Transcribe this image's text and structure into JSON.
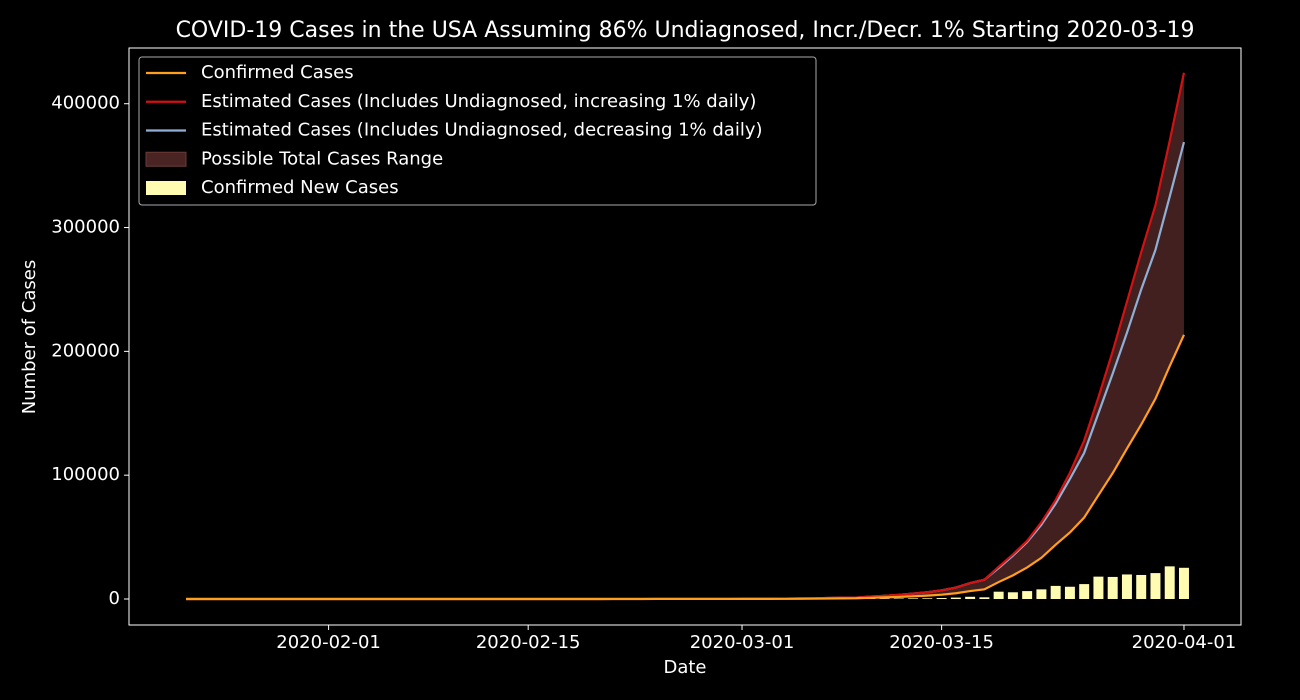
{
  "chart_data": {
    "type": "line",
    "title": "COVID-19 Cases in the USA Assuming 86% Undiagnosed, Incr./Decr. 1% Starting 2020-03-19",
    "x_label": "Date",
    "y_label": "Number of Cases",
    "x": [
      "2020-01-22",
      "2020-01-23",
      "2020-01-24",
      "2020-01-25",
      "2020-01-26",
      "2020-01-27",
      "2020-01-28",
      "2020-01-29",
      "2020-01-30",
      "2020-01-31",
      "2020-02-01",
      "2020-02-02",
      "2020-02-03",
      "2020-02-04",
      "2020-02-05",
      "2020-02-06",
      "2020-02-07",
      "2020-02-08",
      "2020-02-09",
      "2020-02-10",
      "2020-02-11",
      "2020-02-12",
      "2020-02-13",
      "2020-02-14",
      "2020-02-15",
      "2020-02-16",
      "2020-02-17",
      "2020-02-18",
      "2020-02-19",
      "2020-02-20",
      "2020-02-21",
      "2020-02-22",
      "2020-02-23",
      "2020-02-24",
      "2020-02-25",
      "2020-02-26",
      "2020-02-27",
      "2020-02-28",
      "2020-02-29",
      "2020-03-01",
      "2020-03-02",
      "2020-03-03",
      "2020-03-04",
      "2020-03-05",
      "2020-03-06",
      "2020-03-07",
      "2020-03-08",
      "2020-03-09",
      "2020-03-10",
      "2020-03-11",
      "2020-03-12",
      "2020-03-13",
      "2020-03-14",
      "2020-03-15",
      "2020-03-16",
      "2020-03-17",
      "2020-03-18",
      "2020-03-19",
      "2020-03-20",
      "2020-03-21",
      "2020-03-22",
      "2020-03-23",
      "2020-03-24",
      "2020-03-25",
      "2020-03-26",
      "2020-03-27",
      "2020-03-28",
      "2020-03-29",
      "2020-03-30",
      "2020-03-31",
      "2020-04-01"
    ],
    "series": [
      {
        "name": "Confirmed Cases",
        "kind": "line",
        "color": "#ff9f1c",
        "values": [
          1,
          1,
          2,
          2,
          5,
          5,
          5,
          5,
          5,
          7,
          8,
          8,
          11,
          11,
          12,
          12,
          12,
          12,
          12,
          12,
          13,
          13,
          14,
          14,
          14,
          14,
          14,
          14,
          14,
          14,
          16,
          16,
          16,
          51,
          51,
          57,
          58,
          60,
          68,
          74,
          98,
          118,
          149,
          217,
          262,
          402,
          518,
          583,
          959,
          1281,
          1663,
          2179,
          2727,
          3499,
          4632,
          6421,
          7786,
          13680,
          19101,
          25493,
          33276,
          43847,
          53740,
          65778,
          83836,
          101657,
          121478,
          140886,
          161807,
          188172,
          213372
        ]
      },
      {
        "name": "Estimated Cases (Includes Undiagnosed, increasing 1% daily)",
        "kind": "line",
        "color": "#d41111",
        "values": [
          2,
          2,
          4,
          4,
          10,
          10,
          10,
          10,
          10,
          14,
          16,
          16,
          22,
          22,
          24,
          24,
          24,
          24,
          24,
          24,
          26,
          26,
          28,
          28,
          28,
          28,
          28,
          28,
          28,
          28,
          32,
          32,
          32,
          102,
          102,
          114,
          116,
          120,
          136,
          148,
          196,
          236,
          298,
          434,
          524,
          804,
          1036,
          1166,
          1918,
          2562,
          3326,
          4358,
          5454,
          6998,
          9264,
          12842,
          15572,
          26000,
          36000,
          47000,
          62000,
          80000,
          102000,
          128000,
          163000,
          200000,
          240000,
          280000,
          318000,
          370000,
          425000
        ]
      },
      {
        "name": "Estimated Cases (Includes Undiagnosed, decreasing 1% daily)",
        "kind": "line",
        "color": "#8fb0d6",
        "values": [
          2,
          2,
          4,
          4,
          10,
          10,
          10,
          10,
          10,
          14,
          16,
          16,
          22,
          22,
          24,
          24,
          24,
          24,
          24,
          24,
          26,
          26,
          28,
          28,
          28,
          28,
          28,
          28,
          28,
          28,
          32,
          32,
          32,
          102,
          102,
          114,
          116,
          120,
          136,
          148,
          196,
          236,
          298,
          434,
          524,
          804,
          1036,
          1166,
          1918,
          2562,
          3326,
          4358,
          5454,
          6998,
          9264,
          12842,
          15572,
          25000,
          35000,
          46000,
          60000,
          77000,
          97000,
          118000,
          150000,
          182000,
          215000,
          250000,
          282000,
          325000,
          369000
        ]
      },
      {
        "name": "Possible Total Cases Range",
        "kind": "area",
        "color": "#4a2423",
        "between": [
          0,
          1
        ]
      },
      {
        "name": "Confirmed New Cases",
        "kind": "bar",
        "color": "#fffbb0",
        "values": [
          0,
          0,
          1,
          0,
          3,
          0,
          0,
          0,
          0,
          2,
          1,
          0,
          3,
          0,
          1,
          0,
          0,
          0,
          0,
          0,
          1,
          0,
          1,
          0,
          0,
          0,
          0,
          0,
          0,
          0,
          2,
          0,
          0,
          35,
          0,
          6,
          1,
          2,
          8,
          6,
          24,
          20,
          31,
          68,
          45,
          140,
          116,
          65,
          376,
          322,
          382,
          516,
          548,
          772,
          1133,
          1789,
          1365,
          5894,
          5421,
          6392,
          7783,
          10571,
          9893,
          12038,
          18058,
          17821,
          19821,
          19408,
          20921,
          26365,
          25200
        ]
      }
    ],
    "xlim": [
      "2020-01-18",
      "2020-04-05"
    ],
    "xticks": [
      "2020-02-01",
      "2020-02-15",
      "2020-03-01",
      "2020-03-15",
      "2020-04-01"
    ],
    "ylim": [
      -21000,
      445000
    ],
    "yticks": [
      0,
      100000,
      200000,
      300000,
      400000
    ],
    "legend": "upper left",
    "grid": false
  }
}
